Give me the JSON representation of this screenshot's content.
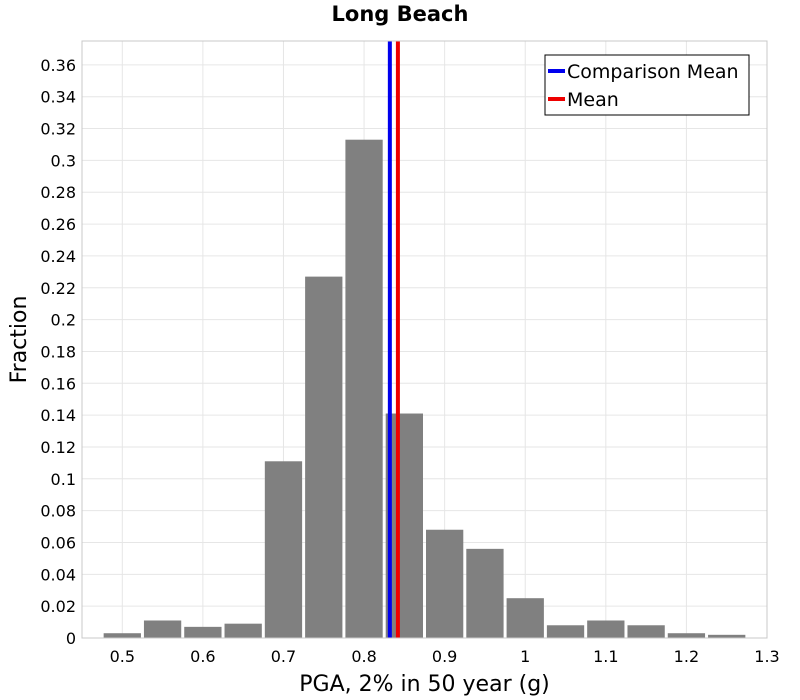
{
  "chart_data": {
    "type": "bar",
    "title": "Long Beach",
    "xlabel": "PGA, 2% in 50 year (g)",
    "ylabel": "Fraction",
    "xlim": [
      0.45,
      1.3
    ],
    "ylim": [
      0,
      0.375
    ],
    "xticks": [
      0.5,
      0.6,
      0.7,
      0.8,
      0.9,
      1,
      1.1,
      1.2,
      1.3
    ],
    "yticks": [
      0,
      0.02,
      0.04,
      0.06,
      0.08,
      0.1,
      0.12,
      0.14,
      0.16,
      0.18,
      0.2,
      0.22,
      0.24,
      0.26,
      0.28,
      0.3,
      0.32,
      0.34,
      0.36
    ],
    "bin_width": 0.05,
    "bins": [
      {
        "x": 0.5,
        "value": 0.003
      },
      {
        "x": 0.55,
        "value": 0.011
      },
      {
        "x": 0.6,
        "value": 0.007
      },
      {
        "x": 0.65,
        "value": 0.009
      },
      {
        "x": 0.7,
        "value": 0.111
      },
      {
        "x": 0.75,
        "value": 0.227
      },
      {
        "x": 0.8,
        "value": 0.313
      },
      {
        "x": 0.85,
        "value": 0.141
      },
      {
        "x": 0.9,
        "value": 0.068
      },
      {
        "x": 0.95,
        "value": 0.056
      },
      {
        "x": 1.0,
        "value": 0.025
      },
      {
        "x": 1.05,
        "value": 0.008
      },
      {
        "x": 1.1,
        "value": 0.011
      },
      {
        "x": 1.15,
        "value": 0.008
      },
      {
        "x": 1.2,
        "value": 0.003
      },
      {
        "x": 1.25,
        "value": 0.002
      }
    ],
    "reference_lines": [
      {
        "name": "Comparison Mean",
        "x": 0.832,
        "color": "#0000ee"
      },
      {
        "name": "Mean",
        "x": 0.842,
        "color": "#ee0000"
      }
    ],
    "bar_color": "#808080",
    "grid": true,
    "legend_position": "top-right"
  }
}
